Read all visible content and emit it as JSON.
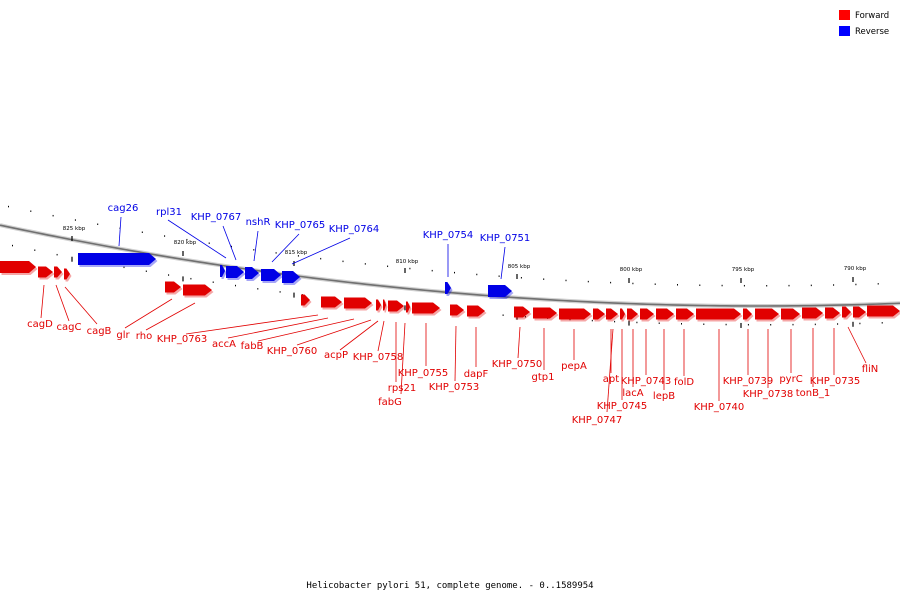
{
  "colors": {
    "forward": "#e10000",
    "reverse": "#0000e6",
    "axis": "#808080"
  },
  "legend": [
    {
      "label": "Forward",
      "color": "#ff0000"
    },
    {
      "label": "Reverse",
      "color": "#0000ff"
    }
  ],
  "ticks": [
    "825 kbp",
    "820 kbp",
    "815 kbp",
    "810 kbp",
    "805 kbp",
    "800 kbp",
    "795 kbp",
    "790 kbp"
  ],
  "reverse_genes": [
    "cag26",
    "rpl31",
    "KHP_0767",
    "nshR",
    "KHP_0765",
    "KHP_0764",
    "KHP_0754",
    "KHP_0751"
  ],
  "forward_genes": [
    "cagD",
    "cagC",
    "cagB",
    "glr",
    "rho",
    "KHP_0763",
    "accA",
    "fabB",
    "KHP_0760",
    "acpP",
    "KHP_0758",
    "rps21",
    "fabG",
    "KHP_0755",
    "KHP_0753",
    "dapF",
    "KHP_0750",
    "gtp1",
    "pepA",
    "apt",
    "KHP_0747",
    "KHP_0745",
    "lacA",
    "KHP_0743",
    "lepB",
    "folD",
    "KHP_0740",
    "KHP_0739",
    "KHP_0738",
    "pyrC",
    "tonB_1",
    "KHP_0735",
    "fliN"
  ],
  "caption": "Helicobacter pylori 51, complete genome. - 0..1589954"
}
